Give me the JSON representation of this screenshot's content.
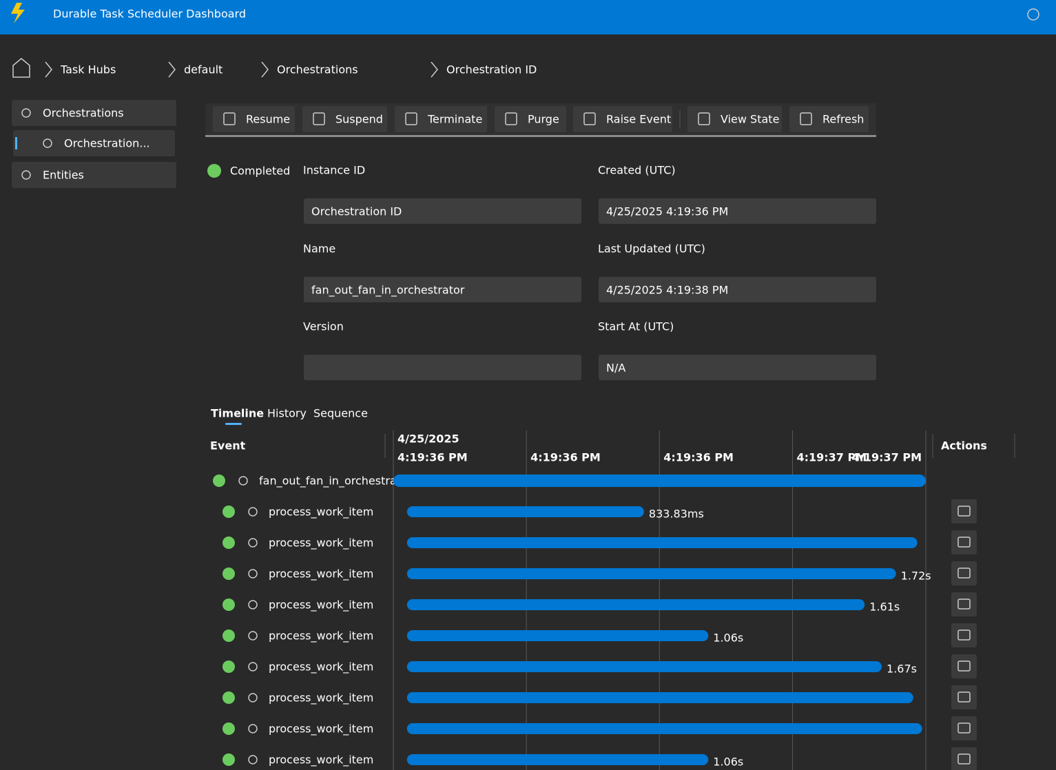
{
  "header": {
    "title": "Durable Task Scheduler Dashboard"
  },
  "breadcrumb": [
    "Task Hubs",
    "default",
    "Orchestrations",
    "Orchestration ID"
  ],
  "sidebar": [
    "Orchestrations",
    "Orchestration...",
    "Entities"
  ],
  "toolbar": [
    "Resume",
    "Suspend",
    "Terminate",
    "Purge",
    "Raise Event",
    "View State",
    "Refresh"
  ],
  "status": "Completed",
  "fields": [
    {
      "label": "Instance ID",
      "value": "Orchestration ID"
    },
    {
      "label": "Created (UTC)",
      "value": "4/25/2025 4:19:36 PM"
    },
    {
      "label": "Name",
      "value": "fan_out_fan_in_orchestrator"
    },
    {
      "label": "Last Updated (UTC)",
      "value": "4/25/2025 4:19:38 PM"
    },
    {
      "label": "Version"
    },
    {
      "label": "Start At (UTC)",
      "value": "N/A"
    }
  ],
  "tabs": [
    "Timeline",
    "History",
    "Sequence"
  ],
  "timeline": {
    "event_header": "Event",
    "actions_header": "Actions",
    "date": "4/25/2025",
    "xlim": [
      0,
      1873
    ],
    "xticks": [
      {
        "value": 0,
        "label": "4:19:36 PM"
      },
      {
        "value": 468,
        "label": "4:19:36 PM"
      },
      {
        "value": 936,
        "label": "4:19:36 PM"
      },
      {
        "value": 1404,
        "label": "4:19:37 PM"
      },
      {
        "value": 1873,
        "label": "4:19:37 PM"
      }
    ],
    "rows": [
      {
        "name": "fan_out_fan_in_orchestra...",
        "start_ms": 0,
        "duration_ms": 1873
      },
      {
        "name": "process_work_item",
        "start_ms": 48,
        "duration_ms": 833.83,
        "duration_label": "833.83ms"
      },
      {
        "name": "process_work_item",
        "start_ms": 48,
        "duration_ms": 1795
      },
      {
        "name": "process_work_item",
        "start_ms": 48,
        "duration_ms": 1720,
        "duration_label": "1.72s"
      },
      {
        "name": "process_work_item",
        "start_ms": 48,
        "duration_ms": 1610,
        "duration_label": "1.61s"
      },
      {
        "name": "process_work_item",
        "start_ms": 48,
        "duration_ms": 1060,
        "duration_label": "1.06s"
      },
      {
        "name": "process_work_item",
        "start_ms": 48,
        "duration_ms": 1670,
        "duration_label": "1.67s"
      },
      {
        "name": "process_work_item",
        "start_ms": 48,
        "duration_ms": 1781
      },
      {
        "name": "process_work_item",
        "start_ms": 48,
        "duration_ms": 1812
      },
      {
        "name": "process_work_item",
        "start_ms": 48,
        "duration_ms": 1060,
        "duration_label": "1.06s"
      }
    ]
  }
}
